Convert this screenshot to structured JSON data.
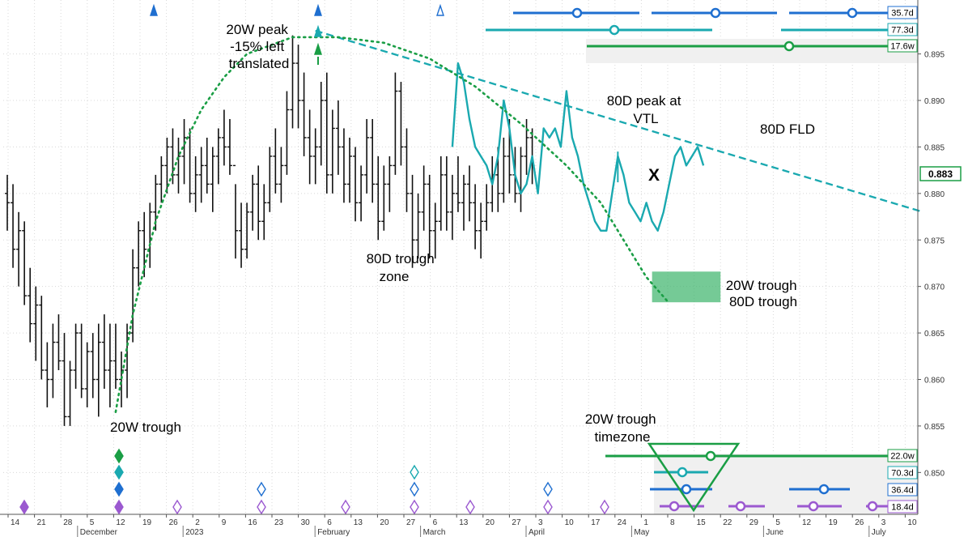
{
  "chart_data": {
    "type": "ohlc",
    "y_axis": {
      "ticks": [
        0.85,
        0.855,
        0.86,
        0.865,
        0.87,
        0.875,
        0.88,
        0.885,
        0.89,
        0.895
      ],
      "tick_labels": [
        "0.850",
        "0.855",
        "0.860",
        "0.865",
        "0.870",
        "0.875",
        "0.880",
        "0.885",
        "0.890",
        "0.895"
      ],
      "ylim": [
        0.8455,
        0.9008
      ],
      "last_price": 0.883,
      "last_price_label": "0.883"
    },
    "x_axis": {
      "day_ticks": [
        "14",
        "21",
        "28",
        "5",
        "12",
        "19",
        "26",
        "2",
        "9",
        "16",
        "23",
        "30",
        "6",
        "13",
        "20",
        "27",
        "6",
        "13",
        "20",
        "27",
        "3",
        "10",
        "17",
        "24",
        "1",
        "8",
        "15",
        "22",
        "29",
        "5",
        "12",
        "19",
        "26",
        "3",
        "10"
      ],
      "month_labels": [
        {
          "label": "December",
          "tick_index": 3
        },
        {
          "label": "2023",
          "tick_index": 7
        },
        {
          "label": "February",
          "tick_index": 12
        },
        {
          "label": "March",
          "tick_index": 16
        },
        {
          "label": "April",
          "tick_index": 20
        },
        {
          "label": "May",
          "tick_index": 24
        },
        {
          "label": "June",
          "tick_index": 29
        },
        {
          "label": "July",
          "tick_index": 33
        }
      ]
    },
    "ohlc_bars": [
      [
        0.88,
        0.882,
        0.876,
        0.879
      ],
      [
        0.879,
        0.881,
        0.872,
        0.874
      ],
      [
        0.874,
        0.878,
        0.87,
        0.876
      ],
      [
        0.876,
        0.877,
        0.868,
        0.869
      ],
      [
        0.869,
        0.872,
        0.864,
        0.866
      ],
      [
        0.866,
        0.87,
        0.862,
        0.868
      ],
      [
        0.868,
        0.869,
        0.86,
        0.861
      ],
      [
        0.861,
        0.864,
        0.857,
        0.86
      ],
      [
        0.86,
        0.866,
        0.858,
        0.864
      ],
      [
        0.864,
        0.867,
        0.861,
        0.862
      ],
      [
        0.862,
        0.865,
        0.855,
        0.856
      ],
      [
        0.856,
        0.862,
        0.855,
        0.861
      ],
      [
        0.861,
        0.866,
        0.859,
        0.865
      ],
      [
        0.865,
        0.866,
        0.858,
        0.859
      ],
      [
        0.859,
        0.864,
        0.857,
        0.863
      ],
      [
        0.863,
        0.865,
        0.858,
        0.86
      ],
      [
        0.86,
        0.866,
        0.856,
        0.864
      ],
      [
        0.864,
        0.867,
        0.859,
        0.861
      ],
      [
        0.861,
        0.866,
        0.857,
        0.862
      ],
      [
        0.862,
        0.866,
        0.859,
        0.86
      ],
      [
        0.86,
        0.863,
        0.857,
        0.861
      ],
      [
        0.861,
        0.866,
        0.858,
        0.865
      ],
      [
        0.865,
        0.874,
        0.864,
        0.872
      ],
      [
        0.872,
        0.877,
        0.87,
        0.876
      ],
      [
        0.876,
        0.878,
        0.871,
        0.874
      ],
      [
        0.874,
        0.879,
        0.872,
        0.878
      ],
      [
        0.878,
        0.882,
        0.876,
        0.881
      ],
      [
        0.881,
        0.884,
        0.879,
        0.883
      ],
      [
        0.883,
        0.886,
        0.88,
        0.885
      ],
      [
        0.885,
        0.887,
        0.881,
        0.882
      ],
      [
        0.882,
        0.886,
        0.88,
        0.884
      ],
      [
        0.884,
        0.888,
        0.881,
        0.886
      ],
      [
        0.886,
        0.887,
        0.879,
        0.88
      ],
      [
        0.88,
        0.884,
        0.878,
        0.882
      ],
      [
        0.882,
        0.885,
        0.879,
        0.883
      ],
      [
        0.883,
        0.886,
        0.88,
        0.881
      ],
      [
        0.881,
        0.885,
        0.878,
        0.884
      ],
      [
        0.884,
        0.887,
        0.881,
        0.886
      ],
      [
        0.886,
        0.889,
        0.883,
        0.885
      ],
      [
        0.885,
        0.888,
        0.882,
        0.883
      ],
      [
        0.883,
        0.881,
        0.873,
        0.876
      ],
      [
        0.876,
        0.879,
        0.872,
        0.874
      ],
      [
        0.874,
        0.879,
        0.873,
        0.878
      ],
      [
        0.878,
        0.882,
        0.876,
        0.881
      ],
      [
        0.881,
        0.883,
        0.875,
        0.877
      ],
      [
        0.877,
        0.881,
        0.875,
        0.879
      ],
      [
        0.879,
        0.885,
        0.878,
        0.884
      ],
      [
        0.884,
        0.887,
        0.88,
        0.881
      ],
      [
        0.881,
        0.885,
        0.879,
        0.883
      ],
      [
        0.883,
        0.891,
        0.882,
        0.889
      ],
      [
        0.889,
        0.897,
        0.887,
        0.894
      ],
      [
        0.894,
        0.896,
        0.887,
        0.89
      ],
      [
        0.89,
        0.893,
        0.884,
        0.886
      ],
      [
        0.886,
        0.889,
        0.881,
        0.884
      ],
      [
        0.884,
        0.887,
        0.881,
        0.885
      ],
      [
        0.885,
        0.892,
        0.883,
        0.89
      ],
      [
        0.89,
        0.893,
        0.88,
        0.882
      ],
      [
        0.882,
        0.889,
        0.88,
        0.887
      ],
      [
        0.887,
        0.89,
        0.882,
        0.885
      ],
      [
        0.885,
        0.887,
        0.879,
        0.881
      ],
      [
        0.881,
        0.886,
        0.879,
        0.884
      ],
      [
        0.884,
        0.885,
        0.877,
        0.879
      ],
      [
        0.879,
        0.883,
        0.877,
        0.882
      ],
      [
        0.882,
        0.888,
        0.88,
        0.886
      ],
      [
        0.886,
        0.888,
        0.879,
        0.881
      ],
      [
        0.881,
        0.884,
        0.875,
        0.877
      ],
      [
        0.877,
        0.883,
        0.876,
        0.881
      ],
      [
        0.881,
        0.884,
        0.878,
        0.883
      ],
      [
        0.883,
        0.893,
        0.882,
        0.891
      ],
      [
        0.891,
        0.892,
        0.883,
        0.885
      ],
      [
        0.885,
        0.887,
        0.878,
        0.88
      ],
      [
        0.88,
        0.882,
        0.872,
        0.875
      ],
      [
        0.875,
        0.88,
        0.873,
        0.878
      ],
      [
        0.878,
        0.883,
        0.876,
        0.881
      ],
      [
        0.881,
        0.882,
        0.873,
        0.876
      ],
      [
        0.876,
        0.879,
        0.873,
        0.877
      ],
      [
        0.877,
        0.884,
        0.876,
        0.882
      ],
      [
        0.882,
        0.884,
        0.876,
        0.878
      ],
      [
        0.878,
        0.882,
        0.875,
        0.88
      ],
      [
        0.88,
        0.884,
        0.878,
        0.879
      ],
      [
        0.879,
        0.882,
        0.876,
        0.881
      ],
      [
        0.881,
        0.883,
        0.877,
        0.879
      ],
      [
        0.879,
        0.881,
        0.874,
        0.876
      ],
      [
        0.876,
        0.879,
        0.873,
        0.877
      ],
      [
        0.877,
        0.881,
        0.876,
        0.879
      ],
      [
        0.879,
        0.884,
        0.878,
        0.882
      ],
      [
        0.882,
        0.885,
        0.878,
        0.88
      ],
      [
        0.88,
        0.886,
        0.879,
        0.884
      ],
      [
        0.884,
        0.888,
        0.88,
        0.882
      ],
      [
        0.882,
        0.885,
        0.879,
        0.88
      ],
      [
        0.88,
        0.885,
        0.878,
        0.884
      ],
      [
        0.884,
        0.888,
        0.882,
        0.886
      ],
      [
        0.886,
        0.887,
        0.881,
        0.883
      ]
    ],
    "series": [
      {
        "name": "80D FLD",
        "color": "#1aa9b0",
        "points": [
          [
            78,
            0.885
          ],
          [
            79,
            0.894
          ],
          [
            80,
            0.892
          ],
          [
            81,
            0.888
          ],
          [
            82,
            0.885
          ],
          [
            83,
            0.884
          ],
          [
            84,
            0.883
          ],
          [
            85,
            0.881
          ],
          [
            86,
            0.884
          ],
          [
            87,
            0.89
          ],
          [
            88,
            0.887
          ],
          [
            89,
            0.882
          ],
          [
            90,
            0.88
          ],
          [
            91,
            0.881
          ],
          [
            92,
            0.884
          ],
          [
            93,
            0.88
          ],
          [
            94,
            0.887
          ],
          [
            95,
            0.886
          ],
          [
            96,
            0.887
          ],
          [
            97,
            0.885
          ],
          [
            98,
            0.891
          ],
          [
            99,
            0.886
          ],
          [
            100,
            0.884
          ],
          [
            101,
            0.881
          ],
          [
            102,
            0.879
          ],
          [
            103,
            0.877
          ],
          [
            104,
            0.876
          ],
          [
            105,
            0.876
          ],
          [
            106,
            0.88
          ],
          [
            107,
            0.884
          ],
          [
            108,
            0.882
          ],
          [
            109,
            0.879
          ],
          [
            110,
            0.878
          ],
          [
            111,
            0.877
          ],
          [
            112,
            0.879
          ],
          [
            113,
            0.877
          ],
          [
            114,
            0.876
          ],
          [
            115,
            0.878
          ],
          [
            116,
            0.881
          ],
          [
            117,
            0.884
          ],
          [
            118,
            0.885
          ],
          [
            119,
            0.883
          ],
          [
            120,
            0.884
          ],
          [
            121,
            0.885
          ],
          [
            122,
            0.883
          ]
        ]
      },
      {
        "name": "VTL",
        "color": "#1aa9b0",
        "dashed": true,
        "points": [
          [
            54,
            0.8975
          ],
          [
            160,
            0.8781
          ]
        ]
      },
      {
        "name": "20W cycle arc",
        "color": "#1a9e45",
        "dotted": true,
        "points": [
          [
            19,
            0.8565
          ],
          [
            22,
            0.867
          ],
          [
            26,
            0.877
          ],
          [
            30,
            0.884
          ],
          [
            34,
            0.889
          ],
          [
            38,
            0.8925
          ],
          [
            42,
            0.895
          ],
          [
            50,
            0.8968
          ],
          [
            58,
            0.8968
          ],
          [
            66,
            0.8962
          ],
          [
            74,
            0.8945
          ],
          [
            82,
            0.8915
          ],
          [
            90,
            0.8875
          ],
          [
            98,
            0.883
          ],
          [
            104,
            0.879
          ],
          [
            108,
            0.875
          ],
          [
            112,
            0.871
          ],
          [
            116,
            0.8682
          ]
        ]
      }
    ],
    "projection_box": {
      "x_from": 113,
      "x_to": 125,
      "y_from": 0.8683,
      "y_to": 0.8716,
      "color": "#3bb46a"
    },
    "x_marker": {
      "label": "X",
      "x": 108,
      "y": 0.8822,
      "color": "#e82020"
    },
    "annotations": [
      {
        "id": "peak",
        "lines": [
          "20W peak",
          "-15% left",
          "translated"
        ],
        "color": "#1a9e45"
      },
      {
        "id": "trough-20w",
        "lines": [
          "20W trough"
        ],
        "color": "#1a9e45"
      },
      {
        "id": "zone-80d",
        "lines": [
          "80D trough",
          "zone"
        ],
        "color": "#1aa9b0"
      },
      {
        "id": "vtl",
        "lines": [
          "80D peak at",
          "VTL"
        ],
        "color": "#1aa9b0"
      },
      {
        "id": "fld",
        "lines": [
          "80D FLD"
        ],
        "color": "#1aa9b0"
      },
      {
        "id": "box-trough",
        "lines": [
          "20W trough",
          "80D trough"
        ],
        "color": "#1a9e45"
      },
      {
        "id": "timezone",
        "lines": [
          "20W trough",
          "timezone"
        ],
        "color": "#1a9e45"
      }
    ],
    "cycle_legend": [
      {
        "label": "35.7d",
        "color": "#1f6fd0"
      },
      {
        "label": "77.3d",
        "color": "#1aa9b0"
      },
      {
        "label": "17.6w",
        "color": "#1a9e45"
      },
      {
        "label": "22.0w",
        "color": "#1a9e45"
      },
      {
        "label": "70.3d",
        "color": "#1aa9b0"
      },
      {
        "label": "36.4d",
        "color": "#1f6fd0"
      },
      {
        "label": "18.4d",
        "color": "#9b59d0"
      }
    ],
    "colors": {
      "green": "#1a9e45",
      "teal": "#1aa9b0",
      "blue": "#1f6fd0",
      "purple": "#9b59d0",
      "bars": "#111111"
    }
  }
}
